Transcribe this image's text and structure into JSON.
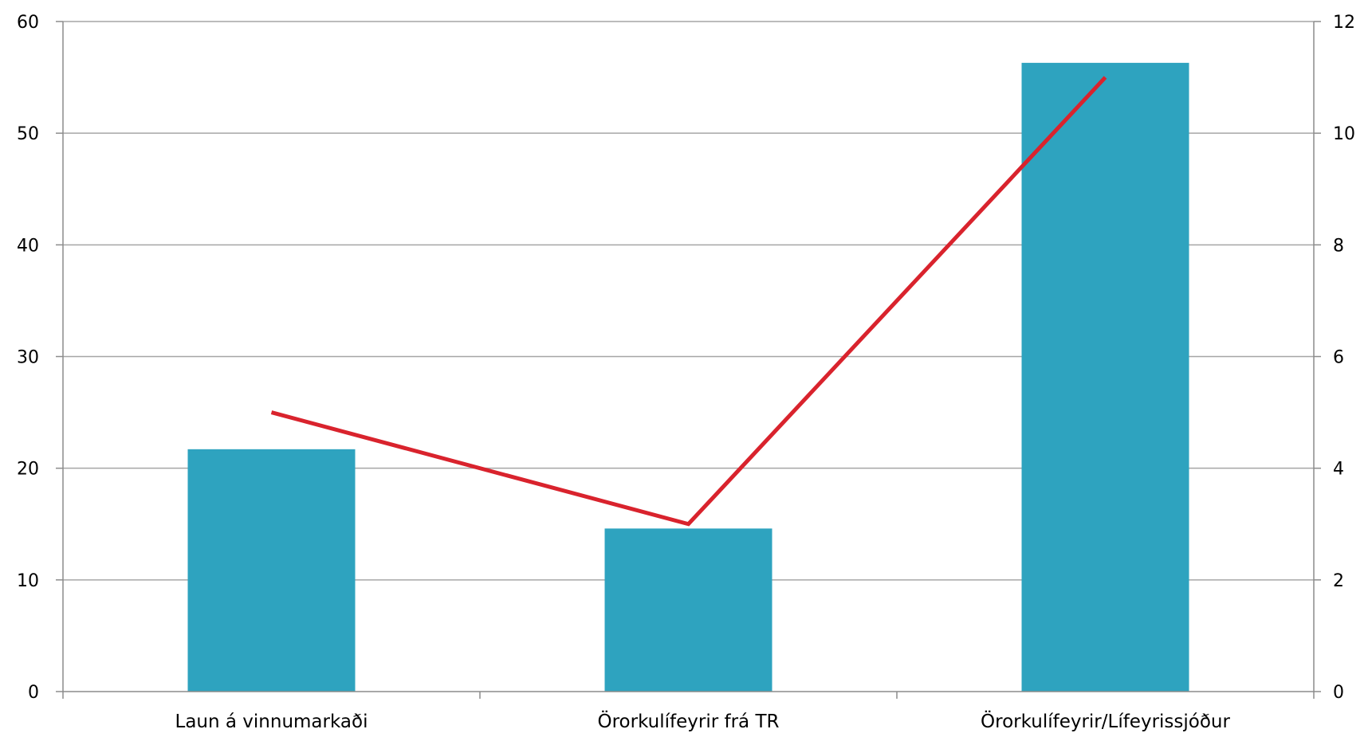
{
  "chart_data": {
    "type": "bar",
    "title": "",
    "xlabel": "",
    "ylabel": "",
    "y2label": "",
    "categories": [
      "Laun á vinnumarkaði",
      "Örorkulífeyrir frá TR",
      "Örorkulífeyrir/Lífeyrissjóður"
    ],
    "series": [
      {
        "type": "bar",
        "axis": "left",
        "color": "#2ea3bf",
        "values": [
          21.7,
          14.6,
          56.3
        ]
      },
      {
        "type": "line",
        "axis": "right",
        "color": "#d9232d",
        "values": [
          5.0,
          3.0,
          11.0
        ]
      }
    ],
    "ylim": [
      0,
      60
    ],
    "y_ticks": [
      "0",
      "10",
      "20",
      "30",
      "40",
      "50",
      "60"
    ],
    "y2lim": [
      0,
      12
    ],
    "y2_ticks": [
      "0",
      "2",
      "4",
      "6",
      "8",
      "10",
      "12"
    ],
    "grid": true,
    "legend": "none"
  }
}
